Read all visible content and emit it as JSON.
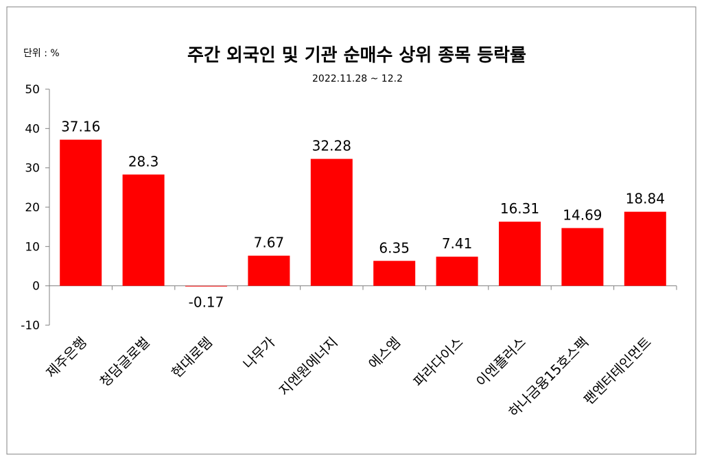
{
  "chart_data": {
    "type": "bar",
    "title": "주간 외국인 및 기관  순매수 상위 종목 등락률",
    "subtitle": "2022.11.28 ~ 12.2",
    "unit_label": "단위 : %",
    "categories": [
      "제주은행",
      "청담글로벌",
      "현대로템",
      "나무가",
      "지엔원에너지",
      "에스엠",
      "파라다이스",
      "이엔플러스",
      "하나금융15호스팩",
      "팬엔터테인먼트"
    ],
    "values": [
      37.16,
      28.3,
      -0.17,
      7.67,
      32.28,
      6.35,
      7.41,
      16.31,
      14.69,
      18.84
    ],
    "value_labels": [
      "37.16",
      "28.3",
      "-0.17",
      "7.67",
      "32.28",
      "6.35",
      "7.41",
      "16.31",
      "14.69",
      "18.84"
    ],
    "ylim": [
      -10,
      50
    ],
    "yticks": [
      -10,
      0,
      10,
      20,
      30,
      40,
      50
    ],
    "grid": false,
    "bar_color": "#ff0000"
  }
}
